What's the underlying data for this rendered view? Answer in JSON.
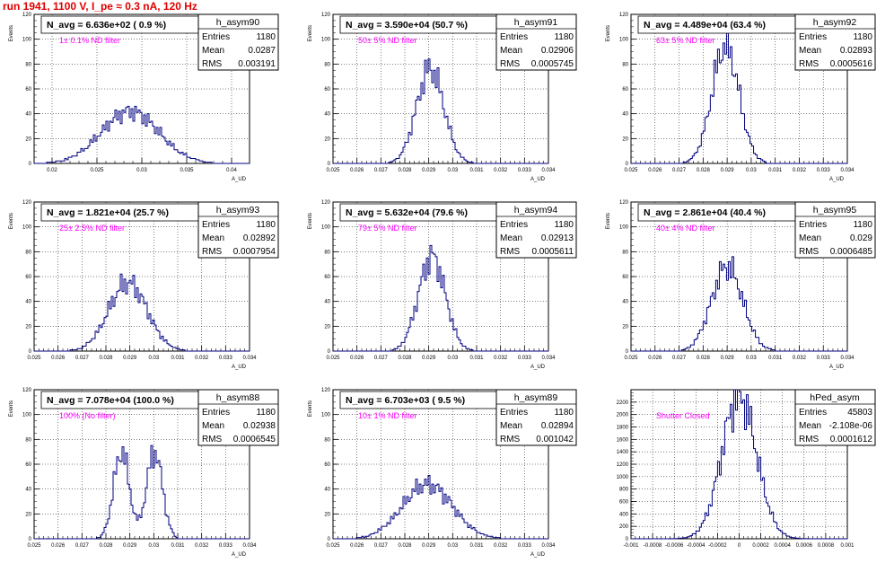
{
  "canvas": {
    "run_title": "run 1941,  1100 V, I_pe ≈ 0.3 nA, 120 Hz",
    "colors": {
      "title": "#e00000",
      "histogram": "#000080",
      "annotation": "#ff00ff",
      "axis": "#000000"
    }
  },
  "chart_data": [
    {
      "type": "histogram",
      "name": "h_asym90",
      "title": "N_avg = 6.636e+02 ( 0.9 %)",
      "annotation": "1± 0.1% ND filter",
      "xlabel": "A_UD",
      "ylabel": "Events",
      "xlim": [
        0.018,
        0.042
      ],
      "ylim": [
        0,
        120
      ],
      "xticks": [
        "0.02",
        "0.025",
        "0.03",
        "0.035",
        "0.04"
      ],
      "xtick_values": [
        0.02,
        0.025,
        0.03,
        0.035,
        0.04
      ],
      "yticks": [
        0,
        20,
        40,
        60,
        80,
        100,
        120
      ],
      "stats": {
        "entries": "1180",
        "mean": "0.0287",
        "rms": "0.003191"
      },
      "shape": {
        "type": "gauss",
        "mean": 0.0287,
        "sigma": 0.0032,
        "peak": 42
      }
    },
    {
      "type": "histogram",
      "name": "h_asym91",
      "title": "N_avg = 3.590e+04 (50.7 %)",
      "annotation": "50± 5% ND filter",
      "xlabel": "A_UD",
      "ylabel": "Events",
      "xlim": [
        0.025,
        0.034
      ],
      "ylim": [
        0,
        120
      ],
      "xticks": [
        "0.025",
        "0.026",
        "0.027",
        "0.028",
        "0.029",
        "0.03",
        "0.031",
        "0.032",
        "0.033",
        "0.034"
      ],
      "xtick_values": [
        0.025,
        0.026,
        0.027,
        0.028,
        0.029,
        0.03,
        0.031,
        0.032,
        0.033,
        0.034
      ],
      "yticks": [
        0,
        20,
        40,
        60,
        80,
        100,
        120
      ],
      "stats": {
        "entries": "1180",
        "mean": "0.02906",
        "rms": "0.0005745"
      },
      "shape": {
        "type": "gauss",
        "mean": 0.02906,
        "sigma": 0.00057,
        "peak": 76
      }
    },
    {
      "type": "histogram",
      "name": "h_asym92",
      "title": "N_avg = 4.489e+04 (63.4 %)",
      "annotation": "63± 5% ND filter",
      "xlabel": "A_UD",
      "ylabel": "Events",
      "xlim": [
        0.025,
        0.034
      ],
      "ylim": [
        0,
        120
      ],
      "xticks": [
        "0.025",
        "0.026",
        "0.027",
        "0.028",
        "0.029",
        "0.03",
        "0.031",
        "0.032",
        "0.033",
        "0.034"
      ],
      "xtick_values": [
        0.025,
        0.026,
        0.027,
        0.028,
        0.029,
        0.03,
        0.031,
        0.032,
        0.033,
        0.034
      ],
      "yticks": [
        0,
        20,
        40,
        60,
        80,
        100,
        120
      ],
      "stats": {
        "entries": "1180",
        "mean": "0.02893",
        "rms": "0.0005616"
      },
      "shape": {
        "type": "gauss",
        "mean": 0.02893,
        "sigma": 0.00056,
        "peak": 95
      }
    },
    {
      "type": "histogram",
      "name": "h_asym93",
      "title": "N_avg = 1.821e+04 (25.7 %)",
      "annotation": "25± 2.5% ND filter",
      "xlabel": "A_UD",
      "ylabel": "Events",
      "xlim": [
        0.025,
        0.034
      ],
      "ylim": [
        0,
        120
      ],
      "xticks": [
        "0.025",
        "0.026",
        "0.027",
        "0.028",
        "0.029",
        "0.03",
        "0.031",
        "0.032",
        "0.033",
        "0.034"
      ],
      "xtick_values": [
        0.025,
        0.026,
        0.027,
        0.028,
        0.029,
        0.03,
        0.031,
        0.032,
        0.033,
        0.034
      ],
      "yticks": [
        0,
        20,
        40,
        60,
        80,
        100,
        120
      ],
      "stats": {
        "entries": "1180",
        "mean": "0.02892",
        "rms": "0.0007954"
      },
      "shape": {
        "type": "gauss",
        "mean": 0.02892,
        "sigma": 0.0008,
        "peak": 55
      }
    },
    {
      "type": "histogram",
      "name": "h_asym94",
      "title": "N_avg = 5.632e+04 (79.6 %)",
      "annotation": "79± 5% ND filter",
      "xlabel": "A_UD",
      "ylabel": "Events",
      "xlim": [
        0.025,
        0.034
      ],
      "ylim": [
        0,
        120
      ],
      "xticks": [
        "0.025",
        "0.026",
        "0.027",
        "0.028",
        "0.029",
        "0.03",
        "0.031",
        "0.032",
        "0.033",
        "0.034"
      ],
      "xtick_values": [
        0.025,
        0.026,
        0.027,
        0.028,
        0.029,
        0.03,
        0.031,
        0.032,
        0.033,
        0.034
      ],
      "yticks": [
        0,
        20,
        40,
        60,
        80,
        100,
        120
      ],
      "stats": {
        "entries": "1180",
        "mean": "0.02913",
        "rms": "0.0005611"
      },
      "shape": {
        "type": "gauss",
        "mean": 0.02913,
        "sigma": 0.00056,
        "peak": 76
      }
    },
    {
      "type": "histogram",
      "name": "h_asym95",
      "title": "N_avg = 2.861e+04 (40.4 %)",
      "annotation": "40± 4% ND filter",
      "xlabel": "A_UD",
      "ylabel": "Events",
      "xlim": [
        0.025,
        0.034
      ],
      "ylim": [
        0,
        120
      ],
      "xticks": [
        "0.025",
        "0.026",
        "0.027",
        "0.028",
        "0.029",
        "0.03",
        "0.031",
        "0.032",
        "0.033",
        "0.034"
      ],
      "xtick_values": [
        0.025,
        0.026,
        0.027,
        0.028,
        0.029,
        0.03,
        0.031,
        0.032,
        0.033,
        0.034
      ],
      "yticks": [
        0,
        20,
        40,
        60,
        80,
        100,
        120
      ],
      "stats": {
        "entries": "1180",
        "mean": "0.029",
        "rms": "0.0006485"
      },
      "shape": {
        "type": "gauss",
        "mean": 0.029,
        "sigma": 0.00065,
        "peak": 68
      }
    },
    {
      "type": "histogram",
      "name": "h_asym88",
      "title": "N_avg = 7.078e+04 (100.0 %)",
      "annotation": "100% (No filter)",
      "xlabel": "A_UD",
      "ylabel": "Events",
      "xlim": [
        0.025,
        0.034
      ],
      "ylim": [
        0,
        120
      ],
      "xticks": [
        "0.025",
        "0.026",
        "0.027",
        "0.028",
        "0.029",
        "0.03",
        "0.031",
        "0.032",
        "0.033",
        "0.034"
      ],
      "xtick_values": [
        0.025,
        0.026,
        0.027,
        0.028,
        0.029,
        0.03,
        0.031,
        0.032,
        0.033,
        0.034
      ],
      "yticks": [
        0,
        20,
        40,
        60,
        80,
        100,
        120
      ],
      "stats": {
        "entries": "1180",
        "mean": "0.02938",
        "rms": "0.0006545"
      },
      "shape": {
        "type": "double",
        "peaks": [
          [
            0.02865,
            0.00033,
            70
          ],
          [
            0.03003,
            0.00033,
            70
          ]
        ]
      }
    },
    {
      "type": "histogram",
      "name": "h_asym89",
      "title": "N_avg = 6.703e+03 ( 9.5 %)",
      "annotation": "10± 1% ND filter",
      "xlabel": "A_UD",
      "ylabel": "Events",
      "xlim": [
        0.025,
        0.034
      ],
      "ylim": [
        0,
        120
      ],
      "xticks": [
        "0.025",
        "0.026",
        "0.027",
        "0.028",
        "0.029",
        "0.03",
        "0.031",
        "0.032",
        "0.033",
        "0.034"
      ],
      "xtick_values": [
        0.025,
        0.026,
        0.027,
        0.028,
        0.029,
        0.03,
        0.031,
        0.032,
        0.033,
        0.034
      ],
      "yticks": [
        0,
        20,
        40,
        60,
        80,
        100,
        120
      ],
      "stats": {
        "entries": "1180",
        "mean": "0.02894",
        "rms": "0.001042"
      },
      "shape": {
        "type": "gauss",
        "mean": 0.02894,
        "sigma": 0.00104,
        "peak": 44
      }
    },
    {
      "type": "histogram",
      "name": "hPed_asym",
      "title": "",
      "annotation": "Shutter Closed",
      "xlabel": "",
      "ylabel": "",
      "xlim": [
        -0.001,
        0.001
      ],
      "ylim": [
        0,
        2400
      ],
      "xticks": [
        "-0.001",
        "-0.0008",
        "-0.0006",
        "-0.0004",
        "-0.0002",
        "0",
        "0.0002",
        "0.0004",
        "0.0006",
        "0.0008",
        "0.001"
      ],
      "xtick_values": [
        -0.001,
        -0.0008,
        -0.0006,
        -0.0004,
        -0.0002,
        0,
        0.0002,
        0.0004,
        0.0006,
        0.0008,
        0.001
      ],
      "yticks": [
        0,
        200,
        400,
        600,
        800,
        1000,
        1200,
        1400,
        1600,
        1800,
        2000,
        2200
      ],
      "stats": {
        "entries": "45803",
        "mean": "-2.108e-06",
        "rms": "0.0001612"
      },
      "shape": {
        "type": "gauss",
        "mean": 0.0,
        "sigma": 0.00016,
        "peak": 2300
      }
    }
  ]
}
